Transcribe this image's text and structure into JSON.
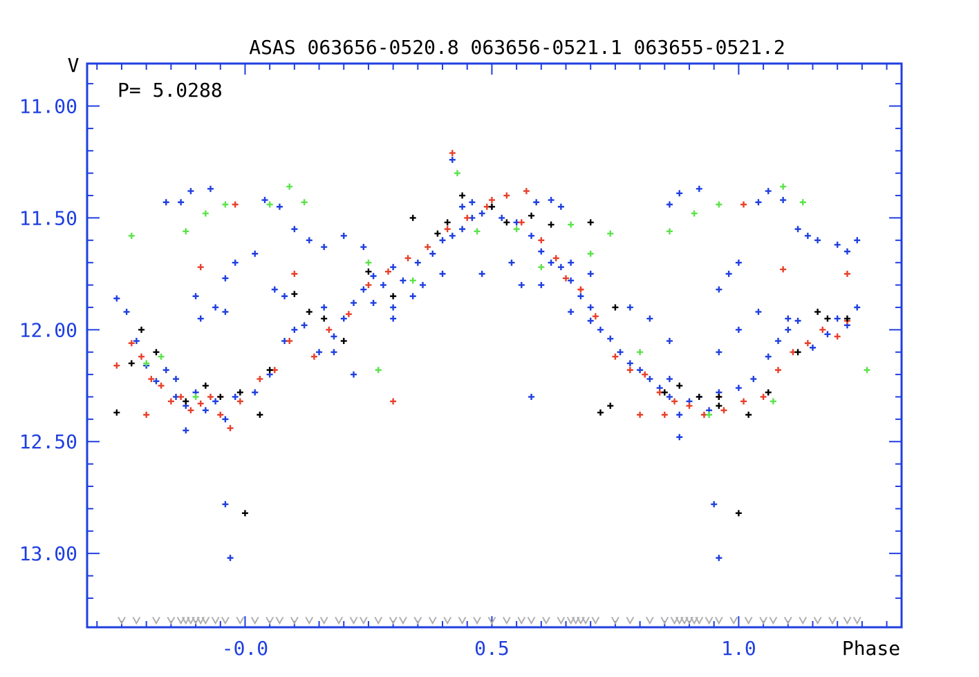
{
  "chart_data": {
    "type": "scatter",
    "title": "ASAS 063656-0520.8 063656-0521.1 063655-0521.2",
    "annotation": "P= 5.0288",
    "xlabel": "Phase",
    "ylabel": "V",
    "xlim": [
      -0.32,
      1.33
    ],
    "ylim": [
      13.33,
      10.81
    ],
    "y_inverted": true,
    "yticks": [
      "11.00",
      "11.50",
      "12.00",
      "12.50",
      "13.00"
    ],
    "yticks_values": [
      11.0,
      11.5,
      12.0,
      12.5,
      13.0
    ],
    "xticks": [
      "-0.0",
      "0.5",
      "1.0"
    ],
    "xticks_values": [
      0.0,
      0.5,
      1.0
    ],
    "grid": false,
    "colors": {
      "axis": "#1f3fe0",
      "blue": "#1f3fe0",
      "red": "#e8402a",
      "green": "#5be34a",
      "black": "#000000",
      "upper_limit": "#b0b0b0"
    },
    "series": [
      {
        "color": "blue",
        "points": [
          [
            -0.26,
            11.86
          ],
          [
            -0.24,
            11.92
          ],
          [
            -0.22,
            12.05
          ],
          [
            -0.2,
            12.16
          ],
          [
            -0.18,
            12.23
          ],
          [
            -0.16,
            12.18
          ],
          [
            -0.14,
            12.3
          ],
          [
            -0.12,
            12.34
          ],
          [
            -0.1,
            12.28
          ],
          [
            -0.08,
            12.36
          ],
          [
            -0.06,
            12.32
          ],
          [
            -0.04,
            12.4
          ],
          [
            -0.02,
            12.3
          ],
          [
            0.02,
            12.28
          ],
          [
            0.05,
            12.2
          ],
          [
            0.08,
            12.05
          ],
          [
            0.1,
            12.0
          ],
          [
            0.12,
            11.98
          ],
          [
            0.15,
            12.1
          ],
          [
            0.18,
            12.03
          ],
          [
            0.2,
            11.95
          ],
          [
            0.22,
            11.88
          ],
          [
            0.24,
            11.82
          ],
          [
            0.26,
            11.76
          ],
          [
            0.28,
            11.8
          ],
          [
            0.3,
            11.72
          ],
          [
            0.32,
            11.78
          ],
          [
            0.35,
            11.7
          ],
          [
            0.38,
            11.66
          ],
          [
            0.4,
            11.6
          ],
          [
            0.42,
            11.58
          ],
          [
            0.44,
            11.55
          ],
          [
            0.46,
            11.5
          ],
          [
            0.48,
            11.48
          ],
          [
            0.5,
            11.45
          ],
          [
            0.52,
            11.5
          ],
          [
            0.55,
            11.52
          ],
          [
            0.58,
            11.58
          ],
          [
            0.6,
            11.65
          ],
          [
            0.62,
            11.7
          ],
          [
            0.64,
            11.72
          ],
          [
            0.66,
            11.78
          ],
          [
            0.68,
            11.85
          ],
          [
            0.7,
            11.9
          ],
          [
            0.72,
            12.0
          ],
          [
            0.74,
            12.04
          ],
          [
            0.76,
            12.1
          ],
          [
            0.78,
            12.15
          ],
          [
            0.8,
            12.18
          ],
          [
            0.82,
            12.22
          ],
          [
            0.84,
            12.26
          ],
          [
            0.86,
            12.3
          ],
          [
            0.88,
            12.38
          ],
          [
            0.9,
            12.32
          ],
          [
            0.92,
            12.3
          ],
          [
            0.94,
            12.36
          ],
          [
            0.96,
            12.28
          ],
          [
            1.0,
            12.26
          ],
          [
            1.03,
            12.22
          ],
          [
            1.06,
            12.12
          ],
          [
            1.08,
            12.05
          ],
          [
            1.1,
            12.0
          ],
          [
            1.12,
            11.96
          ],
          [
            1.15,
            12.08
          ],
          [
            1.18,
            12.02
          ],
          [
            1.2,
            11.95
          ],
          [
            1.22,
            11.98
          ],
          [
            1.24,
            11.9
          ],
          [
            -0.16,
            11.43
          ],
          [
            -0.13,
            11.43
          ],
          [
            -0.11,
            11.38
          ],
          [
            -0.07,
            11.37
          ],
          [
            -0.04,
            11.77
          ],
          [
            -0.02,
            11.7
          ],
          [
            0.02,
            11.66
          ],
          [
            0.04,
            11.42
          ],
          [
            0.07,
            11.45
          ],
          [
            0.1,
            11.55
          ],
          [
            0.13,
            11.6
          ],
          [
            0.16,
            11.63
          ],
          [
            0.2,
            11.58
          ],
          [
            0.24,
            11.63
          ],
          [
            0.42,
            11.24
          ],
          [
            0.44,
            11.45
          ],
          [
            0.46,
            11.43
          ],
          [
            0.56,
            11.8
          ],
          [
            0.59,
            11.43
          ],
          [
            0.62,
            11.42
          ],
          [
            0.64,
            11.45
          ],
          [
            0.86,
            11.44
          ],
          [
            0.88,
            11.39
          ],
          [
            0.92,
            11.37
          ],
          [
            0.96,
            11.82
          ],
          [
            0.98,
            11.75
          ],
          [
            1.0,
            11.7
          ],
          [
            1.04,
            11.43
          ],
          [
            1.06,
            11.38
          ],
          [
            1.09,
            11.42
          ],
          [
            1.12,
            11.55
          ],
          [
            1.14,
            11.58
          ],
          [
            1.16,
            11.6
          ],
          [
            1.2,
            11.62
          ],
          [
            1.22,
            11.65
          ],
          [
            1.24,
            11.6
          ],
          [
            -0.09,
            11.95
          ],
          [
            -0.1,
            11.85
          ],
          [
            -0.06,
            11.9
          ],
          [
            -0.04,
            11.92
          ],
          [
            0.06,
            11.82
          ],
          [
            0.08,
            11.85
          ],
          [
            0.18,
            12.1
          ],
          [
            0.22,
            12.2
          ],
          [
            0.26,
            11.88
          ],
          [
            0.3,
            11.95
          ],
          [
            0.6,
            11.8
          ],
          [
            0.66,
            11.92
          ],
          [
            0.7,
            11.96
          ],
          [
            0.78,
            11.9
          ],
          [
            0.82,
            11.95
          ],
          [
            0.86,
            12.05
          ],
          [
            0.96,
            12.1
          ],
          [
            1.0,
            12.0
          ],
          [
            1.04,
            11.92
          ],
          [
            1.1,
            11.95
          ],
          [
            0.58,
            12.3
          ],
          [
            -0.04,
            12.78
          ],
          [
            -0.03,
            13.02
          ],
          [
            0.95,
            12.78
          ],
          [
            0.96,
            13.02
          ],
          [
            -0.12,
            12.45
          ],
          [
            0.88,
            12.48
          ],
          [
            -0.14,
            12.22
          ],
          [
            0.86,
            12.22
          ],
          [
            0.4,
            11.75
          ],
          [
            0.48,
            11.75
          ],
          [
            0.54,
            11.7
          ],
          [
            0.36,
            11.8
          ],
          [
            0.34,
            11.85
          ],
          [
            0.3,
            11.9
          ],
          [
            0.66,
            11.7
          ],
          [
            0.7,
            11.75
          ],
          [
            0.16,
            11.9
          ]
        ]
      },
      {
        "color": "red",
        "points": [
          [
            -0.26,
            12.16
          ],
          [
            -0.23,
            12.06
          ],
          [
            -0.21,
            12.12
          ],
          [
            -0.19,
            12.22
          ],
          [
            -0.17,
            12.25
          ],
          [
            -0.15,
            12.32
          ],
          [
            -0.13,
            12.3
          ],
          [
            -0.11,
            12.36
          ],
          [
            -0.09,
            12.33
          ],
          [
            -0.07,
            12.3
          ],
          [
            -0.05,
            12.38
          ],
          [
            -0.03,
            12.44
          ],
          [
            -0.01,
            12.32
          ],
          [
            0.03,
            12.22
          ],
          [
            0.06,
            12.18
          ],
          [
            0.09,
            12.05
          ],
          [
            0.14,
            12.12
          ],
          [
            0.17,
            12.0
          ],
          [
            0.21,
            11.93
          ],
          [
            0.25,
            11.8
          ],
          [
            0.29,
            11.74
          ],
          [
            0.33,
            11.68
          ],
          [
            0.37,
            11.63
          ],
          [
            0.41,
            11.55
          ],
          [
            0.45,
            11.5
          ],
          [
            0.49,
            11.45
          ],
          [
            0.53,
            11.4
          ],
          [
            0.56,
            11.52
          ],
          [
            0.6,
            11.6
          ],
          [
            0.63,
            11.68
          ],
          [
            0.65,
            11.77
          ],
          [
            0.68,
            11.82
          ],
          [
            0.71,
            11.94
          ],
          [
            0.75,
            12.12
          ],
          [
            0.78,
            12.18
          ],
          [
            0.81,
            12.2
          ],
          [
            0.84,
            12.28
          ],
          [
            0.87,
            12.32
          ],
          [
            0.9,
            12.34
          ],
          [
            0.93,
            12.38
          ],
          [
            0.97,
            12.36
          ],
          [
            1.01,
            12.32
          ],
          [
            1.05,
            12.3
          ],
          [
            1.08,
            12.18
          ],
          [
            1.11,
            12.1
          ],
          [
            1.14,
            12.06
          ],
          [
            1.17,
            12.0
          ],
          [
            1.2,
            12.03
          ],
          [
            1.22,
            11.96
          ],
          [
            -0.09,
            11.72
          ],
          [
            -0.02,
            11.44
          ],
          [
            0.1,
            11.75
          ],
          [
            0.3,
            12.32
          ],
          [
            0.42,
            11.21
          ],
          [
            0.5,
            11.42
          ],
          [
            0.57,
            11.38
          ],
          [
            0.68,
            11.82
          ],
          [
            0.85,
            12.38
          ],
          [
            1.01,
            11.44
          ],
          [
            1.09,
            11.73
          ],
          [
            1.22,
            11.75
          ],
          [
            -0.2,
            12.38
          ],
          [
            -0.05,
            12.3
          ],
          [
            0.8,
            12.38
          ],
          [
            0.96,
            12.3
          ]
        ]
      },
      {
        "color": "green",
        "points": [
          [
            -0.23,
            11.58
          ],
          [
            -0.17,
            12.12
          ],
          [
            -0.12,
            11.56
          ],
          [
            -0.08,
            11.48
          ],
          [
            -0.04,
            11.44
          ],
          [
            0.05,
            11.44
          ],
          [
            0.09,
            11.36
          ],
          [
            0.12,
            11.43
          ],
          [
            0.25,
            11.7
          ],
          [
            0.27,
            12.18
          ],
          [
            0.34,
            11.78
          ],
          [
            0.43,
            11.3
          ],
          [
            0.47,
            11.56
          ],
          [
            0.55,
            11.55
          ],
          [
            0.6,
            11.72
          ],
          [
            0.66,
            11.53
          ],
          [
            0.7,
            11.66
          ],
          [
            0.74,
            11.57
          ],
          [
            0.86,
            11.56
          ],
          [
            0.91,
            11.48
          ],
          [
            0.96,
            11.44
          ],
          [
            1.07,
            12.32
          ],
          [
            1.09,
            11.36
          ],
          [
            1.13,
            11.43
          ],
          [
            1.26,
            12.18
          ],
          [
            -0.2,
            12.15
          ],
          [
            -0.1,
            12.3
          ],
          [
            0.8,
            12.1
          ],
          [
            0.94,
            12.38
          ]
        ]
      },
      {
        "color": "black",
        "points": [
          [
            -0.26,
            12.37
          ],
          [
            -0.23,
            12.15
          ],
          [
            -0.21,
            12.0
          ],
          [
            -0.12,
            12.32
          ],
          [
            -0.08,
            12.25
          ],
          [
            -0.05,
            12.3
          ],
          [
            -0.01,
            12.28
          ],
          [
            0.0,
            12.82
          ],
          [
            0.03,
            12.38
          ],
          [
            0.05,
            12.18
          ],
          [
            0.1,
            11.84
          ],
          [
            0.13,
            11.92
          ],
          [
            0.16,
            11.95
          ],
          [
            0.2,
            12.05
          ],
          [
            0.25,
            11.74
          ],
          [
            0.3,
            11.85
          ],
          [
            0.34,
            11.5
          ],
          [
            0.39,
            11.57
          ],
          [
            0.41,
            11.52
          ],
          [
            0.44,
            11.4
          ],
          [
            0.5,
            11.45
          ],
          [
            0.53,
            11.52
          ],
          [
            0.58,
            11.49
          ],
          [
            0.62,
            11.53
          ],
          [
            0.72,
            12.37
          ],
          [
            0.74,
            12.34
          ],
          [
            0.75,
            11.9
          ],
          [
            0.85,
            12.28
          ],
          [
            0.88,
            12.25
          ],
          [
            0.92,
            12.3
          ],
          [
            0.96,
            12.34
          ],
          [
            1.0,
            12.82
          ],
          [
            1.02,
            12.38
          ],
          [
            1.06,
            12.28
          ],
          [
            1.12,
            12.1
          ],
          [
            1.16,
            11.92
          ],
          [
            1.18,
            11.95
          ],
          [
            1.22,
            11.95
          ],
          [
            -0.18,
            12.1
          ],
          [
            0.96,
            12.3
          ],
          [
            0.7,
            11.52
          ]
        ]
      }
    ],
    "upper_limits": {
      "color": "upper_limit",
      "y": 13.3,
      "x": [
        -0.25,
        -0.22,
        -0.18,
        -0.15,
        -0.13,
        -0.12,
        -0.11,
        -0.1,
        -0.09,
        -0.08,
        -0.06,
        -0.04,
        -0.01,
        0.02,
        0.05,
        0.07,
        0.1,
        0.13,
        0.16,
        0.19,
        0.22,
        0.24,
        0.27,
        0.3,
        0.32,
        0.35,
        0.38,
        0.41,
        0.44,
        0.47,
        0.5,
        0.53,
        0.56,
        0.58,
        0.61,
        0.64,
        0.66,
        0.67,
        0.68,
        0.69,
        0.71,
        0.75,
        0.78,
        0.82,
        0.85,
        0.87,
        0.88,
        0.89,
        0.9,
        0.91,
        0.92,
        0.94,
        0.96,
        0.99,
        1.02,
        1.05,
        1.07,
        1.1,
        1.13,
        1.16,
        1.19,
        1.22,
        1.24
      ]
    }
  }
}
